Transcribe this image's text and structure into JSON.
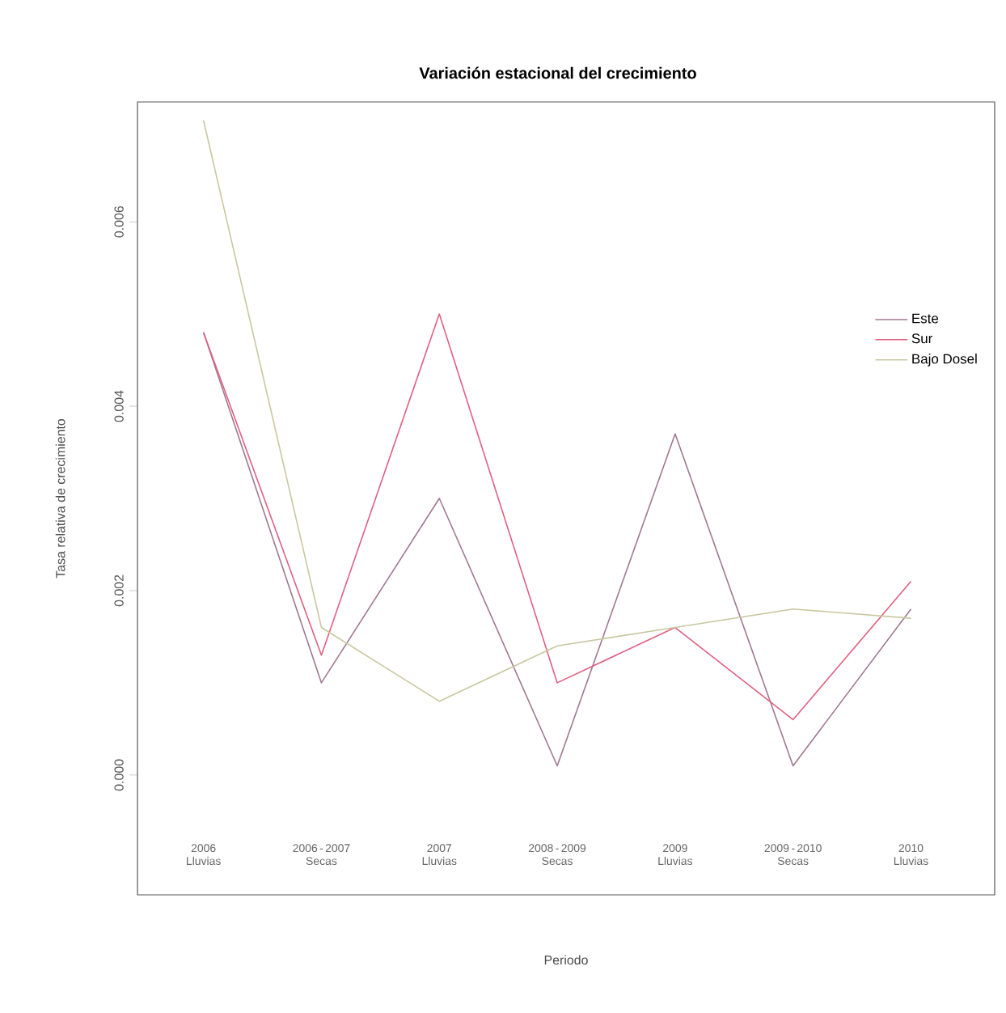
{
  "chart_data": {
    "type": "line",
    "title": "Variación estacional del crecimiento",
    "xlabel": "Periodo",
    "ylabel": "Tasa relativa de crecimiento",
    "categories": [
      "2006 Lluvias",
      "2006 - 2007 Secas",
      "2007 Lluvias",
      "2008 - 2009 Secas",
      "2009 Lluvias",
      "2009 - 2010 Secas",
      "2010 Lluvias"
    ],
    "series": [
      {
        "name": "Este",
        "color": "#a07890",
        "values": [
          0.0048,
          0.001,
          0.003,
          0.0001,
          0.0037,
          0.0001,
          0.0018
        ]
      },
      {
        "name": "Sur",
        "color": "#e06080",
        "values": [
          0.0048,
          0.0013,
          0.005,
          0.001,
          0.0016,
          0.0006,
          0.0021
        ]
      },
      {
        "name": "Bajo Dosel",
        "color": "#c8c8a0",
        "values": [
          0.0071,
          0.0016,
          0.0008,
          0.0014,
          0.0016,
          0.0018,
          0.0017
        ]
      }
    ],
    "ylim": [
      -0.0013,
      0.0073
    ],
    "yticks": [
      {
        "value": 0,
        "label": "0.000"
      },
      {
        "value": 0.002,
        "label": "0.002"
      },
      {
        "value": 0.004,
        "label": "0.004"
      },
      {
        "value": 0.006,
        "label": "0.006"
      }
    ],
    "grid": false,
    "legend": "right",
    "marker": "none",
    "line_style": "solid"
  }
}
